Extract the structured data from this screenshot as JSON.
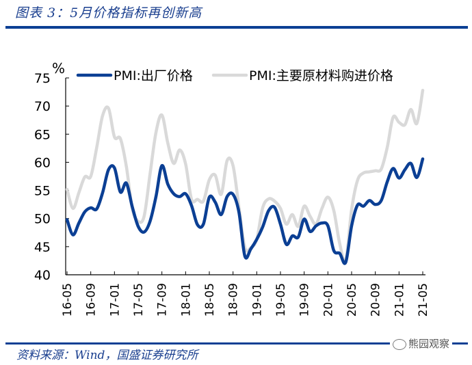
{
  "header": {
    "title": "图表 3：5月价格指标再创新高"
  },
  "footer": {
    "source": "资料来源：Wind，国盛证券研究所",
    "watermark": "熊园观察"
  },
  "chart_data": {
    "type": "line",
    "title": "图表 3：5月价格指标再创新高",
    "xlabel": "",
    "ylabel": "%",
    "ylim": [
      40,
      75
    ],
    "yticks": [
      40,
      45,
      50,
      55,
      60,
      65,
      70,
      75
    ],
    "xticks": [
      "16-05",
      "16-09",
      "17-01",
      "17-05",
      "17-09",
      "18-01",
      "18-05",
      "18-09",
      "19-01",
      "19-05",
      "19-09",
      "20-01",
      "20-05",
      "20-09",
      "21-01",
      "21-05"
    ],
    "legend_position": "top",
    "grid": false,
    "x": [
      "16-05",
      "16-06",
      "16-07",
      "16-08",
      "16-09",
      "16-10",
      "16-11",
      "16-12",
      "17-01",
      "17-02",
      "17-03",
      "17-04",
      "17-05",
      "17-06",
      "17-07",
      "17-08",
      "17-09",
      "17-10",
      "17-11",
      "17-12",
      "18-01",
      "18-02",
      "18-03",
      "18-04",
      "18-05",
      "18-06",
      "18-07",
      "18-08",
      "18-09",
      "18-10",
      "18-11",
      "18-12",
      "19-01",
      "19-02",
      "19-03",
      "19-04",
      "19-05",
      "19-06",
      "19-07",
      "19-08",
      "19-09",
      "19-10",
      "19-11",
      "19-12",
      "20-01",
      "20-02",
      "20-03",
      "20-04",
      "20-05",
      "20-06",
      "20-07",
      "20-08",
      "20-09",
      "20-10",
      "20-11",
      "20-12",
      "21-01",
      "21-02",
      "21-03",
      "21-04",
      "21-05"
    ],
    "series": [
      {
        "name": "PMI:出厂价格",
        "color": "#0b3f94",
        "values": [
          49.8,
          47.1,
          49.2,
          51.2,
          51.9,
          51.7,
          54.6,
          58.7,
          59.0,
          54.7,
          56.3,
          52.1,
          48.6,
          47.6,
          49.5,
          53.9,
          59.4,
          56.1,
          54.4,
          53.9,
          54.4,
          52.3,
          48.9,
          49.0,
          53.8,
          52.9,
          50.7,
          53.9,
          54.3,
          51.1,
          43.3,
          44.6,
          46.3,
          48.5,
          51.4,
          52.0,
          49.0,
          45.4,
          46.9,
          46.7,
          49.9,
          47.7,
          48.7,
          49.2,
          48.7,
          44.3,
          43.8,
          42.2,
          48.7,
          52.4,
          52.2,
          53.2,
          52.5,
          53.2,
          56.5,
          58.9,
          57.2,
          58.7,
          59.8,
          57.3,
          60.6
        ]
      },
      {
        "name": "PMI:主要原材料购进价格",
        "color": "#d9d9d9",
        "values": [
          55.2,
          51.8,
          54.6,
          57.4,
          57.5,
          62.6,
          68.3,
          69.6,
          64.5,
          64.2,
          59.3,
          51.8,
          49.5,
          50.4,
          57.9,
          65.3,
          68.4,
          63.4,
          59.8,
          62.2,
          59.7,
          53.4,
          53.4,
          53.1,
          56.9,
          57.7,
          54.3,
          60.3,
          59.4,
          52.0,
          44.8,
          44.8,
          46.3,
          51.9,
          53.5,
          53.1,
          51.8,
          49.0,
          50.7,
          48.6,
          52.2,
          50.4,
          49.0,
          51.8,
          53.8,
          51.4,
          45.5,
          42.5,
          51.6,
          56.8,
          58.1,
          58.3,
          58.5,
          58.8,
          62.6,
          68.0,
          67.1,
          66.7,
          69.4,
          66.9,
          72.8
        ]
      }
    ]
  }
}
